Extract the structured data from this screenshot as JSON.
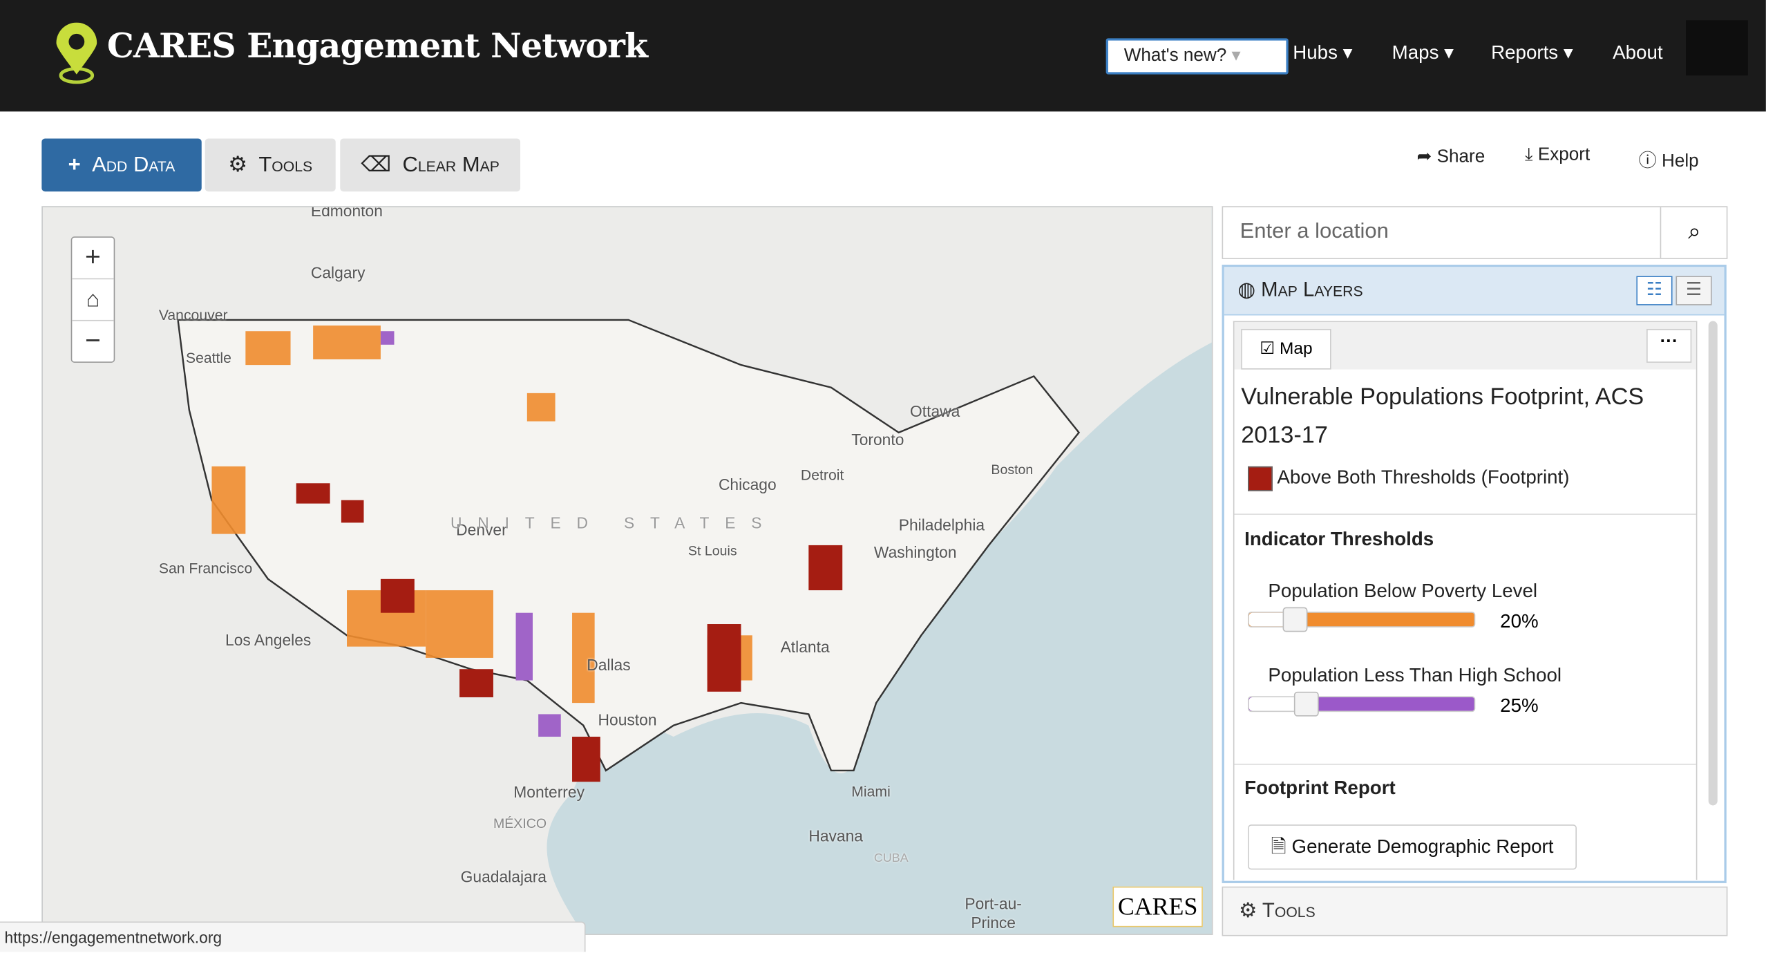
{
  "header": {
    "title": "CARES Engagement Network",
    "nav": [
      "What's new?",
      "Hubs",
      "Maps",
      "Reports",
      "About"
    ]
  },
  "toolbar": {
    "buttons": [
      "Add Data",
      "Tools",
      "Clear Map"
    ],
    "actions": [
      "Share",
      "Export",
      "Help"
    ]
  },
  "map": {
    "labels": [
      "Edmonton",
      "Calgary",
      "Vancouver",
      "Seattle",
      "Ottawa",
      "Toronto",
      "Boston",
      "Detroit",
      "Chicago",
      "Denver",
      "UNITED STATES",
      "Philadelphia",
      "Washington",
      "St Louis",
      "San Francisco",
      "Los Angeles",
      "Dallas",
      "Atlanta",
      "Houston",
      "Monterrey",
      "MÉXICO",
      "Miami",
      "Havana",
      "CUBA",
      "Guadalajara",
      "Port-au-Prince"
    ],
    "attribution": "CARES"
  },
  "search": {
    "placeholder": "Enter a location"
  },
  "layers_panel": {
    "title": "Map Layers",
    "tab": "Map",
    "layer_title": "Vulnerable Populations Footprint, ACS 2013-17",
    "legend": "Above Both Thresholds (Footprint)",
    "thresholds_heading": "Indicator Thresholds",
    "sliders": [
      {
        "label": "Population Below Poverty Level",
        "value": "20%"
      },
      {
        "label": "Population Less Than High School",
        "value": "25%"
      }
    ],
    "report_heading": "Footprint Report",
    "report_button": "Generate Demographic Report"
  },
  "tools_panel": {
    "title": "Tools"
  },
  "status_url": "https://engagementnetwork.org"
}
